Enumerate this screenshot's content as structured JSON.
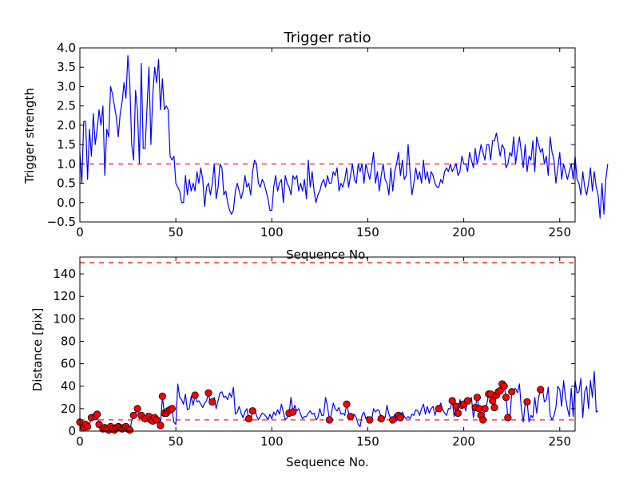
{
  "chart_data": [
    {
      "type": "line",
      "title": "Trigger ratio",
      "xlabel": "Sequence No.",
      "ylabel": "Trigger strength",
      "xlim": [
        0,
        258
      ],
      "ylim": [
        -0.5,
        4.0
      ],
      "xticks": [
        0,
        50,
        100,
        150,
        200,
        250
      ],
      "yticks": [
        -0.5,
        0.0,
        0.5,
        1.0,
        1.5,
        2.0,
        2.5,
        3.0,
        3.5,
        4.0
      ],
      "xtick_labels": [
        "0",
        "50",
        "100",
        "150",
        "200",
        "250"
      ],
      "ytick_labels": [
        "−0.5",
        "0.0",
        "0.5",
        "1.0",
        "1.5",
        "2.0",
        "2.5",
        "3.0",
        "3.5",
        "4.0"
      ],
      "threshold": 1.0,
      "series_color": "#0000ff",
      "threshold_color": "#ff0000",
      "values": [
        1.3,
        0.5,
        2.1,
        2.1,
        0.6,
        1.9,
        1.2,
        2.3,
        1.5,
        1.9,
        2.4,
        2.0,
        2.5,
        0.7,
        1.9,
        1.7,
        3.0,
        2.8,
        2.5,
        2.2,
        1.7,
        2.3,
        2.6,
        3.1,
        2.7,
        3.8,
        3.1,
        1.5,
        1.1,
        2.9,
        2.4,
        1.0,
        3.6,
        1.4,
        1.4,
        2.5,
        3.5,
        1.5,
        2.8,
        3.5,
        3.1,
        3.7,
        2.4,
        3.2,
        2.4,
        2.5,
        2.4,
        1.2,
        1.1,
        1.2,
        0.5,
        0.4,
        0.3,
        0.0,
        0.0,
        0.7,
        0.2,
        0.6,
        0.3,
        0.5,
        0.3,
        0.8,
        0.5,
        0.9,
        0.6,
        -0.1,
        0.4,
        0.5,
        0.2,
        0.5,
        1.0,
        0.1,
        0.4,
        1.0,
        0.9,
        0.2,
        0.3,
        0.0,
        -0.2,
        -0.3,
        -0.2,
        0.3,
        0.5,
        0.3,
        0.1,
        0.3,
        0.7,
        0.4,
        0.5,
        0.2,
        0.8,
        1.1,
        1.0,
        0.5,
        0.4,
        0.6,
        0.5,
        0.3,
        0.1,
        -0.2,
        -0.2,
        0.4,
        0.7,
        0.3,
        0.5,
        0.6,
        0.0,
        0.7,
        0.5,
        0.4,
        0.2,
        0.7,
        0.6,
        0.7,
        0.3,
        0.5,
        0.3,
        0.6,
        0.1,
        1.1,
        0.4,
        0.8,
        0.3,
        0.0,
        0.2,
        0.3,
        0.5,
        0.6,
        0.4,
        0.7,
        0.5,
        0.5,
        0.8,
        0.7,
        0.9,
        0.3,
        0.5,
        0.4,
        0.6,
        0.9,
        0.4,
        0.7,
        1.0,
        0.6,
        0.5,
        1.0,
        0.8,
        1.0,
        0.5,
        1.0,
        0.8,
        0.6,
        0.9,
        1.3,
        0.5,
        0.8,
        0.3,
        0.7,
        1.0,
        0.6,
        0.5,
        0.2,
        0.9,
        0.3,
        0.8,
        1.0,
        1.3,
        0.7,
        1.1,
        0.6,
        0.7,
        1.5,
        0.8,
        0.2,
        0.5,
        0.9,
        0.6,
        0.8,
        0.5,
        1.1,
        0.6,
        0.8,
        0.5,
        0.8,
        0.7,
        0.5,
        0.4,
        0.4,
        0.6,
        0.5,
        0.8,
        0.9,
        0.8,
        1.0,
        0.8,
        0.9,
        1.0,
        0.7,
        0.8,
        1.2,
        1.0,
        1.0,
        0.8,
        1.3,
        1.1,
        0.9,
        1.4,
        1.0,
        1.2,
        1.5,
        1.3,
        1.1,
        1.5,
        1.5,
        1.1,
        1.6,
        1.6,
        1.8,
        1.5,
        1.2,
        1.5,
        1.4,
        0.9,
        1.0,
        1.3,
        1.2,
        1.7,
        1.0,
        1.4,
        1.7,
        1.3,
        0.9,
        1.5,
        0.8,
        1.2,
        1.1,
        1.6,
        0.8,
        1.7,
        1.5,
        1.3,
        1.4,
        1.0,
        1.2,
        0.7,
        1.7,
        1.3,
        1.1,
        0.5,
        0.9,
        1.3,
        0.6,
        1.0,
        0.8,
        0.6,
        0.8,
        1.0,
        0.6,
        1.2,
        0.6,
        0.5,
        0.2,
        0.8,
        0.4,
        0.2,
        0.5,
        0.9,
        0.3,
        0.8,
        0.4,
        0.2,
        -0.4,
        0.5,
        -0.3,
        0.6,
        1.0
      ]
    },
    {
      "type": "line",
      "title": "",
      "xlabel": "Sequence No.",
      "ylabel": "Distance [pix]",
      "xlim": [
        0,
        258
      ],
      "ylim": [
        0,
        155
      ],
      "xticks": [
        0,
        50,
        100,
        150,
        200,
        250
      ],
      "yticks": [
        0,
        20,
        40,
        60,
        80,
        100,
        120,
        140
      ],
      "xtick_labels": [
        "0",
        "50",
        "100",
        "150",
        "200",
        "250"
      ],
      "ytick_labels": [
        "0",
        "20",
        "40",
        "60",
        "80",
        "100",
        "120",
        "140"
      ],
      "thresholds": [
        10,
        150
      ],
      "series_color": "#0000ff",
      "marker_color": "#ff0000",
      "threshold_color": "#ff0000",
      "values": [
        8,
        3,
        3,
        6,
        4,
        6,
        12,
        15,
        13,
        15,
        6,
        7,
        2,
        3,
        2,
        1,
        4,
        2,
        1,
        3,
        4,
        3,
        2,
        3,
        4,
        2,
        1,
        9,
        14,
        16,
        20,
        11,
        14,
        9,
        11,
        16,
        13,
        10,
        9,
        12,
        10,
        8,
        5,
        31,
        16,
        16,
        18,
        19,
        20,
        8,
        6,
        42,
        30,
        28,
        24,
        33,
        19,
        20,
        31,
        23,
        32,
        26,
        27,
        24,
        21,
        25,
        27,
        34,
        24,
        26,
        30,
        20,
        27,
        34,
        35,
        30,
        31,
        28,
        34,
        30,
        39,
        15,
        17,
        22,
        16,
        12,
        17,
        20,
        11,
        10,
        18,
        20,
        14,
        10,
        13,
        16,
        15,
        13,
        10,
        15,
        11,
        17,
        14,
        19,
        15,
        24,
        17,
        10,
        12,
        16,
        30,
        17,
        23,
        18,
        20,
        15,
        11,
        13,
        13,
        16,
        18,
        15,
        16,
        10,
        12,
        20,
        14,
        14,
        30,
        22,
        10,
        15,
        25,
        20,
        18,
        21,
        15,
        16,
        14,
        24,
        16,
        13,
        12,
        15,
        12,
        6,
        4,
        14,
        17,
        11,
        13,
        10,
        10,
        20,
        17,
        19,
        18,
        11,
        13,
        12,
        23,
        15,
        11,
        10,
        15,
        9,
        14,
        12,
        17,
        13,
        11,
        13,
        11,
        15,
        14,
        19,
        18,
        14,
        20,
        24,
        15,
        22,
        16,
        20,
        22,
        14,
        20,
        20,
        25,
        19,
        16,
        14,
        20,
        20,
        27,
        13,
        22,
        16,
        28,
        23,
        24,
        18,
        27,
        24,
        30,
        12,
        21,
        30,
        20,
        14,
        10,
        20,
        24,
        33,
        33,
        27,
        21,
        32,
        35,
        36,
        42,
        40,
        30,
        12,
        10,
        35,
        37,
        38,
        34,
        42,
        20,
        8,
        25,
        26,
        8,
        14,
        12,
        30,
        16,
        30,
        37,
        38,
        26,
        28,
        39,
        14,
        10,
        14,
        21,
        40,
        37,
        22,
        45,
        30,
        20,
        13,
        38,
        13,
        45,
        34,
        35,
        47,
        12,
        35,
        40,
        20,
        45,
        30,
        53,
        17,
        18
      ],
      "marker_indices": [
        0,
        2,
        3,
        4,
        6,
        8,
        9,
        10,
        12,
        13,
        14,
        15,
        16,
        17,
        18,
        19,
        20,
        21,
        22,
        23,
        24,
        25,
        26,
        28,
        30,
        32,
        34,
        36,
        37,
        38,
        39,
        40,
        42,
        43,
        44,
        45,
        46,
        47,
        48,
        60,
        67,
        69,
        88,
        90,
        109,
        111,
        130,
        139,
        141,
        151,
        157,
        163,
        166,
        167,
        187,
        194,
        196,
        197,
        199,
        200,
        202,
        206,
        207,
        208,
        209,
        210,
        211,
        213,
        214,
        215,
        216,
        217,
        218,
        219,
        220,
        221,
        222,
        223,
        225,
        233,
        240
      ]
    }
  ]
}
